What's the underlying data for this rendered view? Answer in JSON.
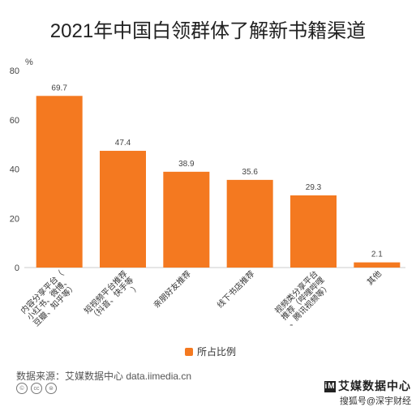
{
  "chart_data": {
    "type": "bar",
    "title": "2021年中国白领群体了解新书籍渠道",
    "ylabel": "%",
    "ylim": [
      0,
      80
    ],
    "yticks": [
      0,
      20,
      40,
      60,
      80
    ],
    "categories": [
      "内容分享平台（小红书、微博、豆瓣、知乎等）",
      "短视频平台推荐（抖音、快手等）",
      "亲朋好友推荐",
      "线下书店推荐",
      "视频类分享平台推荐（哔哩哔哩、腾讯视频等）",
      "其他"
    ],
    "series": [
      {
        "name": "所占比例",
        "values": [
          69.7,
          47.4,
          38.9,
          35.6,
          29.3,
          2.1
        ]
      }
    ],
    "grid": false,
    "legend": "bottom-center",
    "bar_color": "#F47920"
  },
  "source": "数据来源：艾媒数据中心 data.iimedia.cn",
  "license_icons": [
    "cc-icon",
    "by-icon",
    "nd-icon"
  ],
  "watermark": {
    "brand": "艾媒数据中心",
    "sub": "搜狐号@深宇财经"
  }
}
